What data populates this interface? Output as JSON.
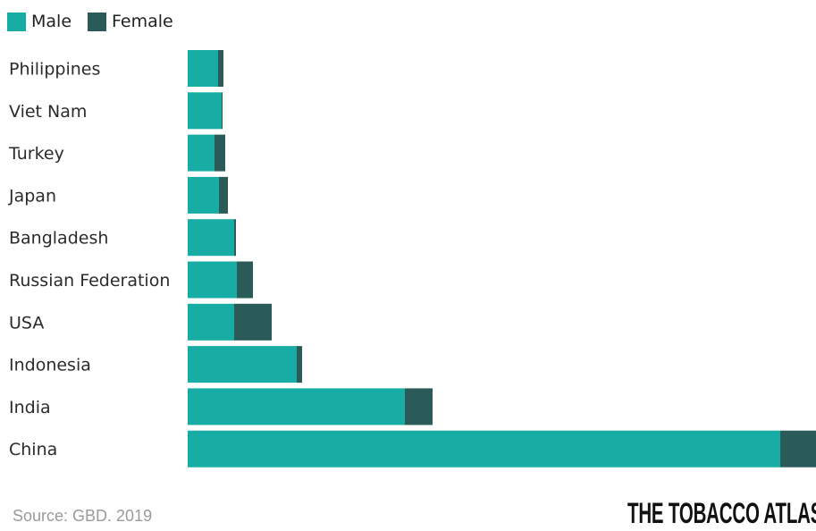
{
  "chart_data": {
    "type": "bar",
    "orientation": "horizontal",
    "stacked": true,
    "categories": [
      "Philippines",
      "Viet Nam",
      "Turkey",
      "Japan",
      "Bangladesh",
      "Russian Federation",
      "USA",
      "Indonesia",
      "India",
      "China"
    ],
    "series": [
      {
        "name": "Male",
        "values": [
          34,
          38,
          30,
          35,
          52,
          55,
          52,
          122,
          243,
          663
        ]
      },
      {
        "name": "Female",
        "values": [
          6,
          1,
          12,
          10,
          2,
          18,
          42,
          6,
          31,
          40
        ]
      }
    ],
    "colors": {
      "Male": "#17ada5",
      "Female": "#2a5b58"
    },
    "xlim": [
      0,
      703
    ],
    "legend": "top-left",
    "grid": false,
    "title": "",
    "xlabel": "",
    "ylabel": ""
  },
  "legend": {
    "male_label": "Male",
    "female_label": "Female",
    "male_color": "#17ada5",
    "female_color": "#2a5b58"
  },
  "footer": {
    "source": "Source: GBD. 2019",
    "brand": "THE TOBACCO ATLAS"
  }
}
